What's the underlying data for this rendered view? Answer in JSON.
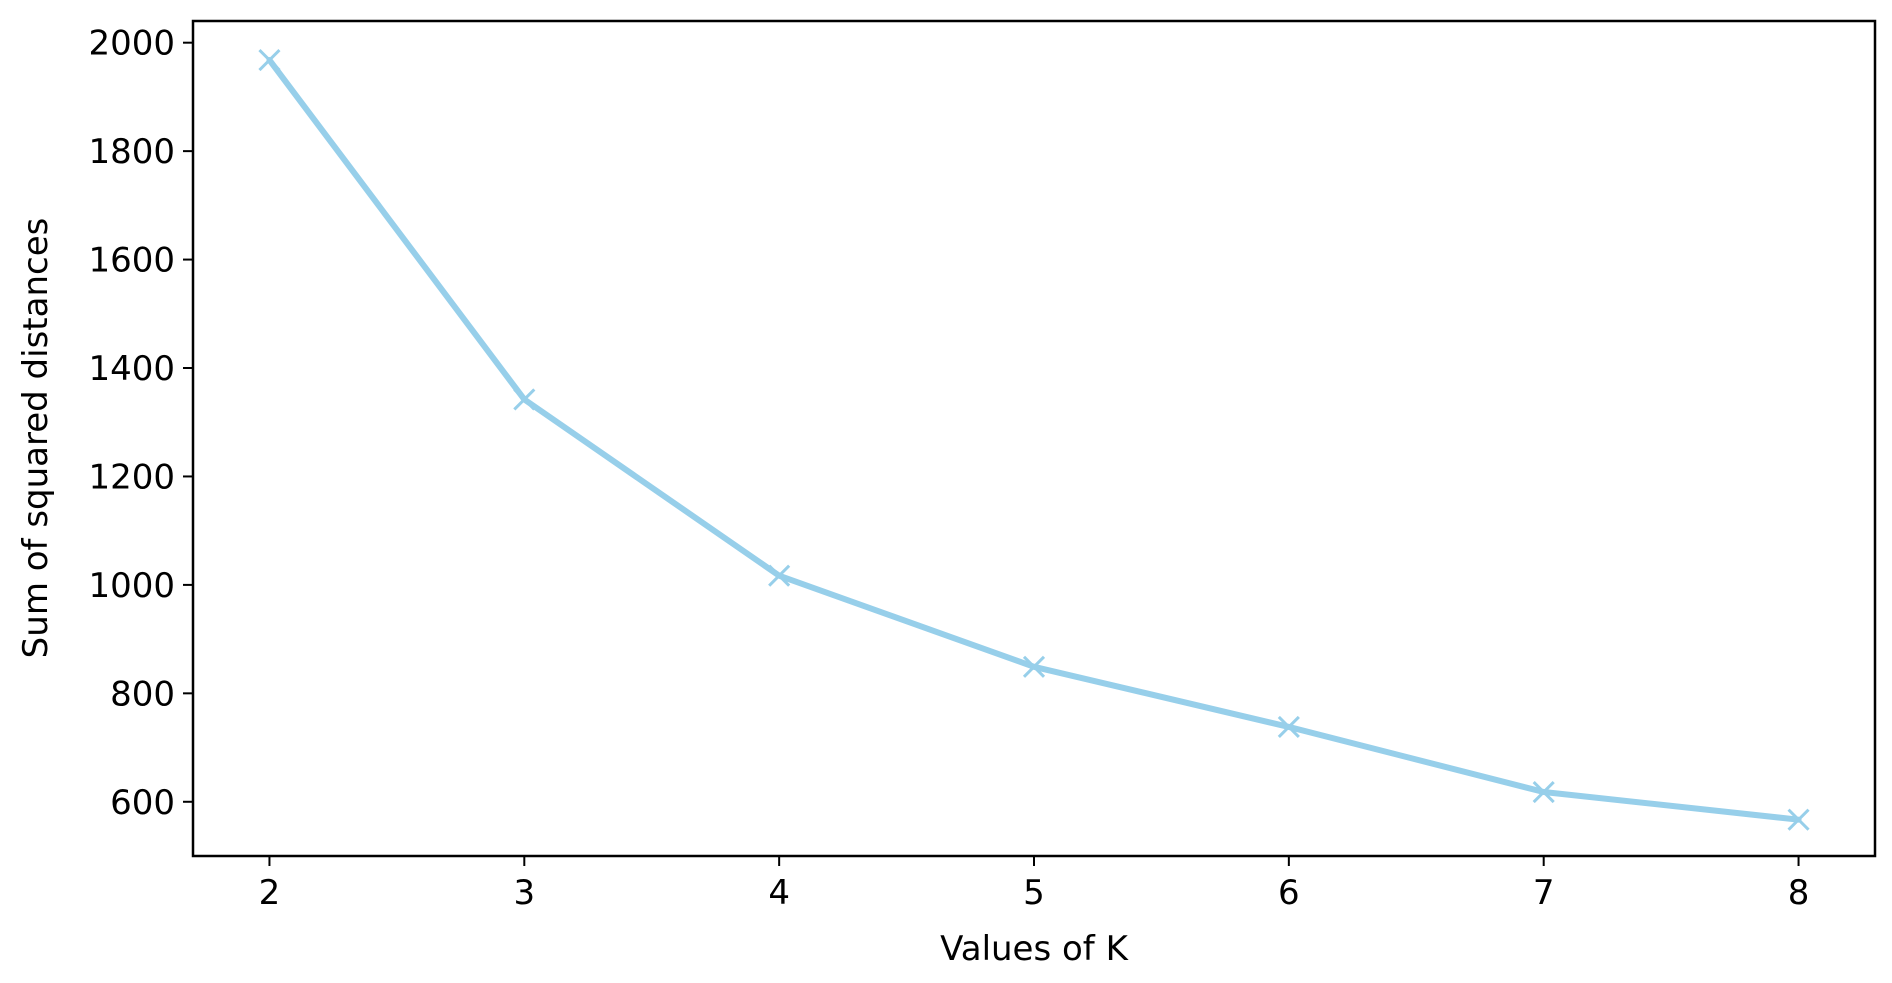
{
  "chart_data": {
    "type": "line",
    "title": "",
    "xlabel": "Values of K",
    "ylabel": "Sum of squared distances",
    "x": [
      2,
      3,
      4,
      5,
      6,
      7,
      8
    ],
    "series": [
      {
        "values": [
          1968,
          1342,
          1017,
          849,
          738,
          618,
          567
        ],
        "color": "#97cfea",
        "marker": "x"
      }
    ],
    "xlim": [
      1.7,
      8.3
    ],
    "ylim": [
      500,
      2040
    ],
    "xticks": [
      2,
      3,
      4,
      5,
      6,
      7,
      8
    ],
    "yticks": [
      600,
      800,
      1000,
      1200,
      1400,
      1600,
      1800,
      2000
    ],
    "grid": false,
    "legend": "none"
  }
}
